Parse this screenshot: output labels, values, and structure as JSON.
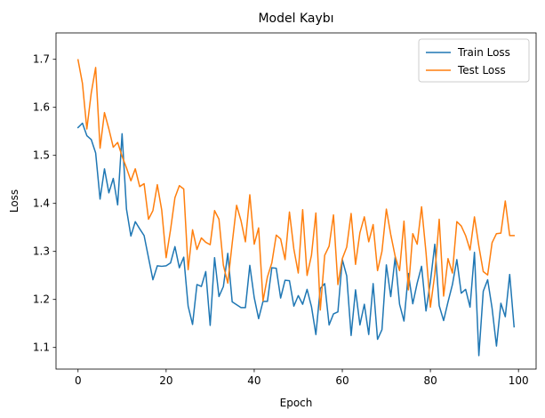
{
  "chart_data": {
    "type": "line",
    "title": "Model Kaybı",
    "xlabel": "Epoch",
    "ylabel": "Loss",
    "xlim": [
      -5,
      104
    ],
    "ylim": [
      1.055,
      1.755
    ],
    "xticks": [
      0,
      20,
      40,
      60,
      80,
      100
    ],
    "yticks": [
      1.1,
      1.2,
      1.3,
      1.4,
      1.5,
      1.6,
      1.7
    ],
    "ytick_labels": [
      "1.1",
      "1.2",
      "1.3",
      "1.4",
      "1.5",
      "1.6",
      "1.7"
    ],
    "grid": false,
    "legend_position": "top-right",
    "series": [
      {
        "name": "Train Loss",
        "color": "#1f77b4",
        "values": [
          1.558,
          1.567,
          1.541,
          1.533,
          1.505,
          1.409,
          1.472,
          1.422,
          1.452,
          1.397,
          1.545,
          1.388,
          1.332,
          1.362,
          1.347,
          1.333,
          1.287,
          1.241,
          1.27,
          1.269,
          1.27,
          1.276,
          1.31,
          1.266,
          1.288,
          1.186,
          1.148,
          1.231,
          1.227,
          1.258,
          1.146,
          1.287,
          1.206,
          1.227,
          1.296,
          1.195,
          1.189,
          1.183,
          1.183,
          1.271,
          1.204,
          1.16,
          1.196,
          1.196,
          1.266,
          1.265,
          1.203,
          1.24,
          1.239,
          1.186,
          1.208,
          1.19,
          1.221,
          1.185,
          1.127,
          1.223,
          1.233,
          1.147,
          1.17,
          1.174,
          1.283,
          1.249,
          1.125,
          1.22,
          1.147,
          1.19,
          1.127,
          1.233,
          1.117,
          1.137,
          1.272,
          1.206,
          1.288,
          1.19,
          1.155,
          1.254,
          1.191,
          1.234,
          1.269,
          1.176,
          1.237,
          1.315,
          1.187,
          1.156,
          1.195,
          1.231,
          1.283,
          1.213,
          1.221,
          1.184,
          1.298,
          1.083,
          1.217,
          1.241,
          1.182,
          1.103,
          1.192,
          1.164,
          1.252,
          1.143
        ]
      },
      {
        "name": "Test Loss",
        "color": "#ff7f0e",
        "values": [
          1.699,
          1.65,
          1.555,
          1.63,
          1.683,
          1.515,
          1.589,
          1.555,
          1.517,
          1.527,
          1.498,
          1.474,
          1.447,
          1.472,
          1.435,
          1.441,
          1.367,
          1.385,
          1.439,
          1.386,
          1.287,
          1.345,
          1.412,
          1.437,
          1.43,
          1.262,
          1.345,
          1.304,
          1.328,
          1.319,
          1.314,
          1.385,
          1.367,
          1.271,
          1.234,
          1.317,
          1.396,
          1.364,
          1.32,
          1.418,
          1.315,
          1.349,
          1.197,
          1.247,
          1.276,
          1.334,
          1.326,
          1.283,
          1.382,
          1.305,
          1.255,
          1.387,
          1.25,
          1.292,
          1.38,
          1.178,
          1.292,
          1.311,
          1.376,
          1.231,
          1.285,
          1.309,
          1.379,
          1.273,
          1.339,
          1.372,
          1.32,
          1.356,
          1.26,
          1.3,
          1.388,
          1.335,
          1.29,
          1.26,
          1.363,
          1.22,
          1.337,
          1.315,
          1.393,
          1.298,
          1.184,
          1.253,
          1.367,
          1.207,
          1.285,
          1.255,
          1.362,
          1.353,
          1.333,
          1.303,
          1.372,
          1.311,
          1.258,
          1.251,
          1.318,
          1.337,
          1.338,
          1.405,
          1.333,
          1.333
        ]
      }
    ]
  }
}
